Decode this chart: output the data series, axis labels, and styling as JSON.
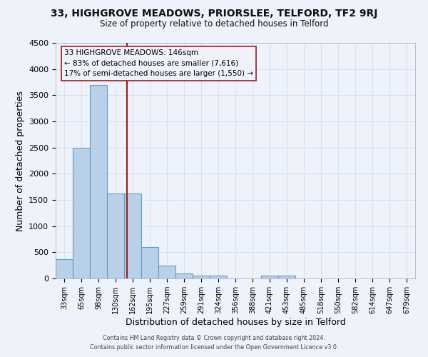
{
  "title1": "33, HIGHGROVE MEADOWS, PRIORSLEE, TELFORD, TF2 9RJ",
  "title2": "Size of property relative to detached houses in Telford",
  "xlabel": "Distribution of detached houses by size in Telford",
  "ylabel": "Number of detached properties",
  "categories": [
    "33sqm",
    "65sqm",
    "98sqm",
    "130sqm",
    "162sqm",
    "195sqm",
    "227sqm",
    "259sqm",
    "291sqm",
    "324sqm",
    "356sqm",
    "388sqm",
    "421sqm",
    "453sqm",
    "485sqm",
    "518sqm",
    "550sqm",
    "582sqm",
    "614sqm",
    "647sqm",
    "679sqm"
  ],
  "values": [
    375,
    2500,
    3700,
    1625,
    1625,
    600,
    240,
    100,
    60,
    60,
    0,
    0,
    60,
    60,
    0,
    0,
    0,
    0,
    0,
    0,
    0
  ],
  "bar_color": "#b8d0e8",
  "bar_edge_color": "#6699cc",
  "marker_label": "33 HIGHGROVE MEADOWS: 146sqm",
  "annotation_line1": "← 83% of detached houses are smaller (7,616)",
  "annotation_line2": "17% of semi-detached houses are larger (1,550) →",
  "red_line_color": "#9b1c1c",
  "box_edge_color": "#9b1c1c",
  "red_line_x": 4.16,
  "ylim": [
    0,
    4500
  ],
  "yticks": [
    0,
    500,
    1000,
    1500,
    2000,
    2500,
    3000,
    3500,
    4000,
    4500
  ],
  "footer1": "Contains HM Land Registry data © Crown copyright and database right 2024.",
  "footer2": "Contains public sector information licensed under the Open Government Licence v3.0.",
  "bg_color": "#eef2fb",
  "grid_color": "#d8e0f0",
  "bar_width": 1.0
}
